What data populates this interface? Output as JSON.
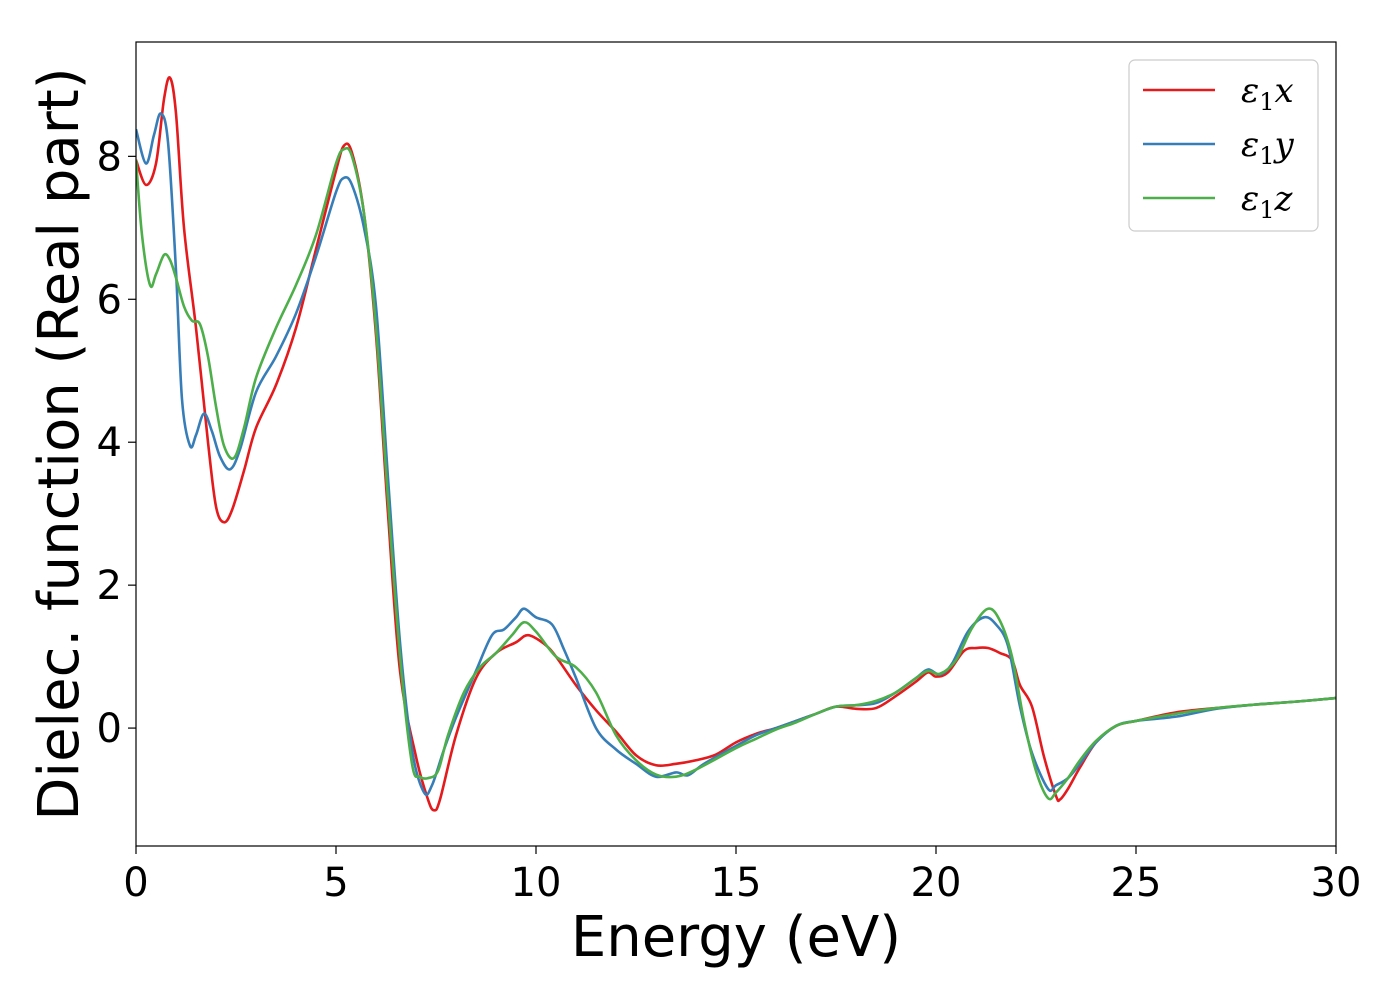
{
  "chart_data": {
    "type": "line",
    "title": "",
    "xlabel": "Energy (eV)",
    "ylabel": "Dielec. function (Real part)",
    "xlim": [
      0,
      30
    ],
    "ylim": [
      -1.65,
      9.6
    ],
    "xticks": [
      0,
      5,
      10,
      15,
      20,
      25,
      30
    ],
    "yticks": [
      0,
      2,
      4,
      6,
      8
    ],
    "grid": false,
    "legend_position": "top-right",
    "series": [
      {
        "name": "ε₁x",
        "legend_base": "ε",
        "legend_sub": "1",
        "legend_suffix": "x",
        "color": "#e41a1c",
        "points": [
          [
            0,
            7.95
          ],
          [
            0.25,
            7.6
          ],
          [
            0.5,
            7.9
          ],
          [
            0.7,
            8.8
          ],
          [
            0.85,
            9.1
          ],
          [
            1.0,
            8.6
          ],
          [
            1.2,
            7.0
          ],
          [
            1.5,
            5.6
          ],
          [
            1.8,
            4.0
          ],
          [
            2.0,
            3.1
          ],
          [
            2.2,
            2.88
          ],
          [
            2.4,
            3.05
          ],
          [
            2.7,
            3.6
          ],
          [
            3.0,
            4.2
          ],
          [
            3.5,
            4.8
          ],
          [
            4.0,
            5.6
          ],
          [
            4.5,
            6.7
          ],
          [
            5.0,
            7.8
          ],
          [
            5.2,
            8.15
          ],
          [
            5.4,
            8.05
          ],
          [
            5.7,
            7.2
          ],
          [
            6.0,
            5.5
          ],
          [
            6.3,
            3.0
          ],
          [
            6.6,
            0.8
          ],
          [
            7.0,
            -0.4
          ],
          [
            7.3,
            -1.0
          ],
          [
            7.45,
            -1.15
          ],
          [
            7.6,
            -1.0
          ],
          [
            8.0,
            -0.1
          ],
          [
            8.5,
            0.7
          ],
          [
            9.0,
            1.05
          ],
          [
            9.5,
            1.2
          ],
          [
            9.8,
            1.3
          ],
          [
            10.2,
            1.18
          ],
          [
            10.5,
            1.0
          ],
          [
            11.0,
            0.6
          ],
          [
            11.5,
            0.25
          ],
          [
            12.0,
            -0.05
          ],
          [
            12.5,
            -0.38
          ],
          [
            13.0,
            -0.52
          ],
          [
            13.5,
            -0.5
          ],
          [
            14.0,
            -0.45
          ],
          [
            14.5,
            -0.37
          ],
          [
            15.0,
            -0.2
          ],
          [
            15.5,
            -0.08
          ],
          [
            16.0,
            0.0
          ],
          [
            16.5,
            0.1
          ],
          [
            17.0,
            0.2
          ],
          [
            17.5,
            0.3
          ],
          [
            18.0,
            0.27
          ],
          [
            18.5,
            0.28
          ],
          [
            19.0,
            0.45
          ],
          [
            19.5,
            0.65
          ],
          [
            19.8,
            0.78
          ],
          [
            20.0,
            0.72
          ],
          [
            20.3,
            0.78
          ],
          [
            20.7,
            1.08
          ],
          [
            21.0,
            1.12
          ],
          [
            21.3,
            1.12
          ],
          [
            21.6,
            1.05
          ],
          [
            21.9,
            0.95
          ],
          [
            22.1,
            0.6
          ],
          [
            22.4,
            0.3
          ],
          [
            22.7,
            -0.4
          ],
          [
            23.0,
            -0.95
          ],
          [
            23.1,
            -1.0
          ],
          [
            23.3,
            -0.85
          ],
          [
            23.6,
            -0.55
          ],
          [
            24.0,
            -0.2
          ],
          [
            24.5,
            0.03
          ],
          [
            25.0,
            0.1
          ],
          [
            26.0,
            0.22
          ],
          [
            27.0,
            0.28
          ],
          [
            28.0,
            0.33
          ],
          [
            29.0,
            0.37
          ],
          [
            30.0,
            0.42
          ]
        ]
      },
      {
        "name": "ε₁y",
        "legend_base": "ε",
        "legend_sub": "1",
        "legend_suffix": "y",
        "color": "#377eb8",
        "points": [
          [
            0,
            8.38
          ],
          [
            0.25,
            7.9
          ],
          [
            0.45,
            8.3
          ],
          [
            0.62,
            8.6
          ],
          [
            0.8,
            8.2
          ],
          [
            1.0,
            6.4
          ],
          [
            1.15,
            4.6
          ],
          [
            1.35,
            3.95
          ],
          [
            1.5,
            4.1
          ],
          [
            1.7,
            4.4
          ],
          [
            1.9,
            4.15
          ],
          [
            2.1,
            3.8
          ],
          [
            2.35,
            3.62
          ],
          [
            2.6,
            3.9
          ],
          [
            3.0,
            4.7
          ],
          [
            3.5,
            5.2
          ],
          [
            4.0,
            5.8
          ],
          [
            4.5,
            6.6
          ],
          [
            5.0,
            7.5
          ],
          [
            5.2,
            7.7
          ],
          [
            5.4,
            7.6
          ],
          [
            5.7,
            7.0
          ],
          [
            6.0,
            5.9
          ],
          [
            6.3,
            3.5
          ],
          [
            6.6,
            1.2
          ],
          [
            6.9,
            -0.3
          ],
          [
            7.2,
            -0.9
          ],
          [
            7.4,
            -0.8
          ],
          [
            7.7,
            -0.3
          ],
          [
            8.0,
            0.15
          ],
          [
            8.5,
            0.8
          ],
          [
            8.9,
            1.3
          ],
          [
            9.2,
            1.38
          ],
          [
            9.5,
            1.55
          ],
          [
            9.7,
            1.67
          ],
          [
            10.0,
            1.55
          ],
          [
            10.4,
            1.45
          ],
          [
            10.7,
            1.1
          ],
          [
            11.0,
            0.7
          ],
          [
            11.5,
            0.0
          ],
          [
            12.0,
            -0.3
          ],
          [
            12.5,
            -0.5
          ],
          [
            13.0,
            -0.68
          ],
          [
            13.5,
            -0.62
          ],
          [
            13.8,
            -0.66
          ],
          [
            14.2,
            -0.5
          ],
          [
            15.0,
            -0.25
          ],
          [
            15.5,
            -0.1
          ],
          [
            16.0,
            0.0
          ],
          [
            16.5,
            0.1
          ],
          [
            17.0,
            0.2
          ],
          [
            17.5,
            0.3
          ],
          [
            18.0,
            0.32
          ],
          [
            18.5,
            0.35
          ],
          [
            19.0,
            0.5
          ],
          [
            19.5,
            0.7
          ],
          [
            19.8,
            0.82
          ],
          [
            20.1,
            0.75
          ],
          [
            20.4,
            0.9
          ],
          [
            20.8,
            1.35
          ],
          [
            21.2,
            1.55
          ],
          [
            21.5,
            1.45
          ],
          [
            21.8,
            1.15
          ],
          [
            22.1,
            0.3
          ],
          [
            22.4,
            -0.35
          ],
          [
            22.8,
            -0.85
          ],
          [
            23.0,
            -0.8
          ],
          [
            23.3,
            -0.7
          ],
          [
            23.6,
            -0.5
          ],
          [
            24.0,
            -0.2
          ],
          [
            24.5,
            0.03
          ],
          [
            25.0,
            0.1
          ],
          [
            26.0,
            0.16
          ],
          [
            27.0,
            0.27
          ],
          [
            28.0,
            0.33
          ],
          [
            29.0,
            0.37
          ],
          [
            30.0,
            0.42
          ]
        ]
      },
      {
        "name": "ε₁z",
        "legend_base": "ε",
        "legend_sub": "1",
        "legend_suffix": "z",
        "color": "#4daf4a",
        "points": [
          [
            0,
            7.95
          ],
          [
            0.15,
            6.9
          ],
          [
            0.35,
            6.2
          ],
          [
            0.5,
            6.35
          ],
          [
            0.7,
            6.62
          ],
          [
            0.85,
            6.55
          ],
          [
            1.0,
            6.3
          ],
          [
            1.2,
            5.9
          ],
          [
            1.4,
            5.7
          ],
          [
            1.6,
            5.65
          ],
          [
            1.8,
            5.2
          ],
          [
            2.0,
            4.5
          ],
          [
            2.2,
            3.95
          ],
          [
            2.45,
            3.78
          ],
          [
            2.7,
            4.2
          ],
          [
            3.0,
            4.9
          ],
          [
            3.5,
            5.6
          ],
          [
            4.0,
            6.2
          ],
          [
            4.5,
            6.9
          ],
          [
            5.0,
            7.9
          ],
          [
            5.2,
            8.1
          ],
          [
            5.4,
            8.0
          ],
          [
            5.7,
            7.2
          ],
          [
            6.0,
            5.6
          ],
          [
            6.3,
            3.2
          ],
          [
            6.6,
            1.0
          ],
          [
            6.9,
            -0.5
          ],
          [
            7.1,
            -0.68
          ],
          [
            7.3,
            -0.7
          ],
          [
            7.55,
            -0.6
          ],
          [
            7.8,
            -0.1
          ],
          [
            8.2,
            0.5
          ],
          [
            8.6,
            0.85
          ],
          [
            9.0,
            1.05
          ],
          [
            9.4,
            1.3
          ],
          [
            9.7,
            1.48
          ],
          [
            10.0,
            1.35
          ],
          [
            10.5,
            1.0
          ],
          [
            11.0,
            0.85
          ],
          [
            11.5,
            0.5
          ],
          [
            12.0,
            -0.1
          ],
          [
            12.5,
            -0.45
          ],
          [
            13.0,
            -0.65
          ],
          [
            13.5,
            -0.68
          ],
          [
            14.0,
            -0.58
          ],
          [
            15.0,
            -0.28
          ],
          [
            15.5,
            -0.15
          ],
          [
            16.0,
            -0.02
          ],
          [
            16.5,
            0.08
          ],
          [
            17.0,
            0.2
          ],
          [
            17.5,
            0.3
          ],
          [
            18.0,
            0.32
          ],
          [
            18.5,
            0.38
          ],
          [
            19.0,
            0.5
          ],
          [
            19.5,
            0.7
          ],
          [
            19.8,
            0.8
          ],
          [
            20.1,
            0.76
          ],
          [
            20.5,
            0.95
          ],
          [
            20.9,
            1.4
          ],
          [
            21.3,
            1.67
          ],
          [
            21.6,
            1.5
          ],
          [
            21.9,
            1.0
          ],
          [
            22.2,
            0.1
          ],
          [
            22.5,
            -0.6
          ],
          [
            22.8,
            -0.98
          ],
          [
            23.0,
            -0.9
          ],
          [
            23.3,
            -0.7
          ],
          [
            23.6,
            -0.45
          ],
          [
            24.0,
            -0.18
          ],
          [
            24.5,
            0.03
          ],
          [
            25.0,
            0.1
          ],
          [
            26.0,
            0.2
          ],
          [
            27.0,
            0.28
          ],
          [
            28.0,
            0.33
          ],
          [
            29.0,
            0.37
          ],
          [
            30.0,
            0.42
          ]
        ]
      }
    ]
  }
}
